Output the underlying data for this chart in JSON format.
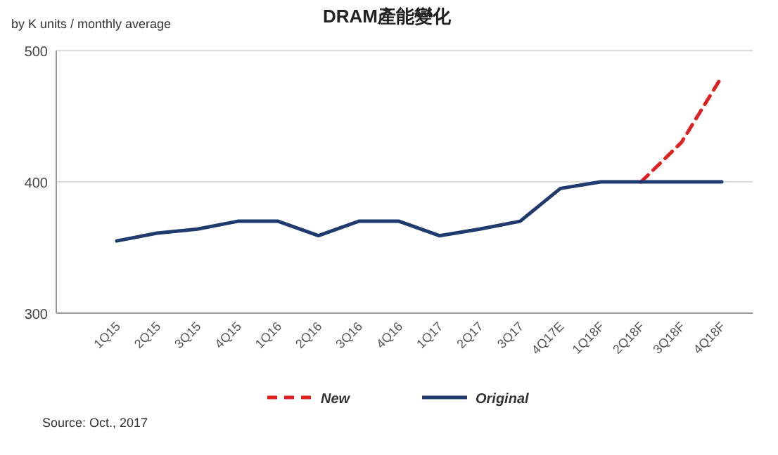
{
  "chart_data": {
    "type": "line",
    "title": "DRAM產能變化",
    "ylabel": "by K units / monthly average",
    "categories": [
      "1Q15",
      "2Q15",
      "3Q15",
      "4Q15",
      "1Q16",
      "2Q16",
      "3Q16",
      "4Q16",
      "1Q17",
      "2Q17",
      "3Q17",
      "4Q17E",
      "1Q18F",
      "2Q18F",
      "3Q18F",
      "4Q18F"
    ],
    "series": [
      {
        "name": "New",
        "color": "#e02020",
        "line_style": "dashed",
        "values": [
          null,
          null,
          null,
          null,
          null,
          null,
          null,
          null,
          null,
          null,
          null,
          null,
          null,
          400,
          430,
          480
        ]
      },
      {
        "name": "Original",
        "color": "#1f3a6e",
        "line_style": "solid",
        "values": [
          355,
          361,
          364,
          370,
          370,
          359,
          370,
          370,
          359,
          364,
          370,
          395,
          400,
          400,
          400,
          400
        ]
      }
    ],
    "ylim": [
      300,
      500
    ],
    "yticks": [
      300,
      400,
      500
    ],
    "grid": "y",
    "legend": "bottom",
    "annotations": [
      "Source: Oct., 2017"
    ]
  }
}
